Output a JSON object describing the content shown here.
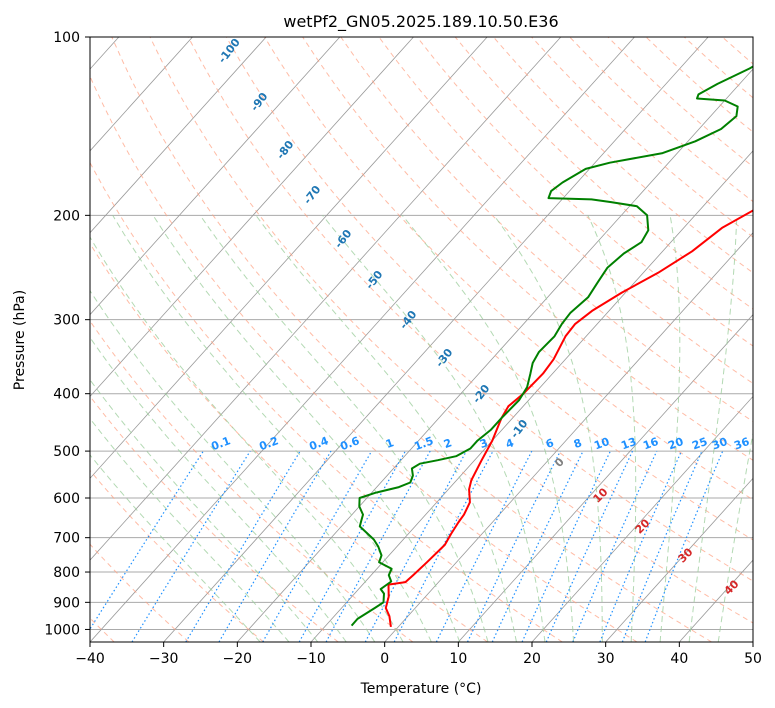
{
  "chart_data": {
    "type": "line",
    "title": "wetPf2_GN05.2025.189.10.50.E36",
    "xlabel": "Temperature (°C)",
    "ylabel": "Pressure (hPa)",
    "xlim": [
      -40,
      50
    ],
    "ylim": [
      1050,
      100
    ],
    "y_scale": "log",
    "x_ticks": [
      -40,
      -30,
      -20,
      -10,
      0,
      10,
      20,
      30,
      40,
      50
    ],
    "y_ticks": [
      100,
      200,
      300,
      400,
      500,
      600,
      700,
      800,
      900,
      1000
    ],
    "grid": true,
    "series": [
      {
        "role": "temperature",
        "color": "#ff0000",
        "points": [
          [
            -1,
            990
          ],
          [
            -2.5,
            950
          ],
          [
            -4,
            920
          ],
          [
            -5,
            880
          ],
          [
            -6.5,
            840
          ],
          [
            -4.5,
            832
          ],
          [
            -4.3,
            810
          ],
          [
            -4,
            770
          ],
          [
            -3.7,
            720
          ],
          [
            -4.2,
            690
          ],
          [
            -4.6,
            660
          ],
          [
            -4.8,
            640
          ],
          [
            -5.5,
            610
          ],
          [
            -7.2,
            580
          ],
          [
            -8,
            560
          ],
          [
            -9,
            520
          ],
          [
            -10,
            480
          ],
          [
            -11.5,
            440
          ],
          [
            -12,
            420
          ],
          [
            -11.5,
            400
          ],
          [
            -11.3,
            370
          ],
          [
            -11.6,
            350
          ],
          [
            -12.8,
            320
          ],
          [
            -13,
            305
          ],
          [
            -12.3,
            290
          ],
          [
            -10.5,
            270
          ],
          [
            -8,
            250
          ],
          [
            -6,
            230
          ],
          [
            -4.8,
            210
          ],
          [
            -2.5,
            195
          ],
          [
            0.5,
            185
          ],
          [
            4,
            175
          ],
          [
            7,
            160
          ],
          [
            9,
            150
          ],
          [
            11,
            140
          ],
          [
            13,
            130
          ],
          [
            15,
            124
          ],
          [
            17,
            116
          ],
          [
            19,
            110
          ],
          [
            22,
            101
          ]
        ]
      },
      {
        "role": "dewpoint",
        "color": "#008000",
        "points": [
          [
            -6.5,
            985
          ],
          [
            -6.5,
            960
          ],
          [
            -5.5,
            920
          ],
          [
            -5,
            900
          ],
          [
            -6,
            870
          ],
          [
            -7,
            855
          ],
          [
            -6.5,
            830
          ],
          [
            -7.6,
            810
          ],
          [
            -8,
            790
          ],
          [
            -10.5,
            770
          ],
          [
            -11,
            750
          ],
          [
            -12.5,
            725
          ],
          [
            -14,
            705
          ],
          [
            -17.5,
            670
          ],
          [
            -18,
            655
          ],
          [
            -18.5,
            640
          ],
          [
            -20,
            620
          ],
          [
            -21,
            600
          ],
          [
            -19.5,
            588
          ],
          [
            -17,
            575
          ],
          [
            -16,
            565
          ],
          [
            -16.5,
            550
          ],
          [
            -17.5,
            535
          ],
          [
            -17,
            525
          ],
          [
            -15,
            518
          ],
          [
            -13,
            510
          ],
          [
            -12,
            495
          ],
          [
            -12,
            480
          ],
          [
            -11.5,
            460
          ],
          [
            -11.5,
            440
          ],
          [
            -11.3,
            410
          ],
          [
            -11.8,
            390
          ],
          [
            -13,
            370
          ],
          [
            -14,
            355
          ],
          [
            -14.5,
            340
          ],
          [
            -14.3,
            320
          ],
          [
            -14.8,
            305
          ],
          [
            -15,
            292
          ],
          [
            -14.5,
            275
          ],
          [
            -15,
            260
          ],
          [
            -15.5,
            245
          ],
          [
            -15,
            232
          ],
          [
            -14,
            222
          ],
          [
            -14.5,
            212
          ],
          [
            -16.5,
            200
          ],
          [
            -19,
            193
          ],
          [
            -23,
            190
          ],
          [
            -26,
            188
          ],
          [
            -32,
            187
          ],
          [
            -32.5,
            182
          ],
          [
            -32,
            176
          ],
          [
            -30.5,
            167
          ],
          [
            -28,
            163
          ],
          [
            -22,
            157
          ],
          [
            -19,
            150
          ],
          [
            -17,
            143
          ],
          [
            -16.5,
            136
          ],
          [
            -17.5,
            131
          ],
          [
            -20,
            128
          ],
          [
            -24,
            127
          ],
          [
            -24.3,
            125
          ],
          [
            -23,
            120
          ],
          [
            -20.5,
            113
          ],
          [
            -19,
            107
          ],
          [
            -17,
            100
          ]
        ]
      }
    ],
    "dry_adiabat_labels": [
      "-100",
      "-90",
      "-80",
      "-70",
      "-60",
      "-50",
      "-40",
      "-30",
      "-20",
      "-10"
    ],
    "mixing_ratio_labels": [
      "0.1",
      "0.2",
      "0.4",
      "0.6",
      "1",
      "1.5",
      "2",
      "3",
      "4",
      "6",
      "8",
      "10",
      "13",
      "16",
      "20",
      "25",
      "30",
      "36"
    ],
    "moist_adiabat_labels": [
      "0",
      "10",
      "20",
      "30",
      "40"
    ],
    "colors": {
      "isotherm": "#999999",
      "isobar": "#aaaaaa",
      "dry_adiabat": "#ff9f80",
      "moist_adiabat": "#99cc99",
      "mixing_ratio": "#1e90ff",
      "dry_label": "#1f77b4",
      "moist_label": "#d62728",
      "zero_label": "#808080"
    }
  }
}
